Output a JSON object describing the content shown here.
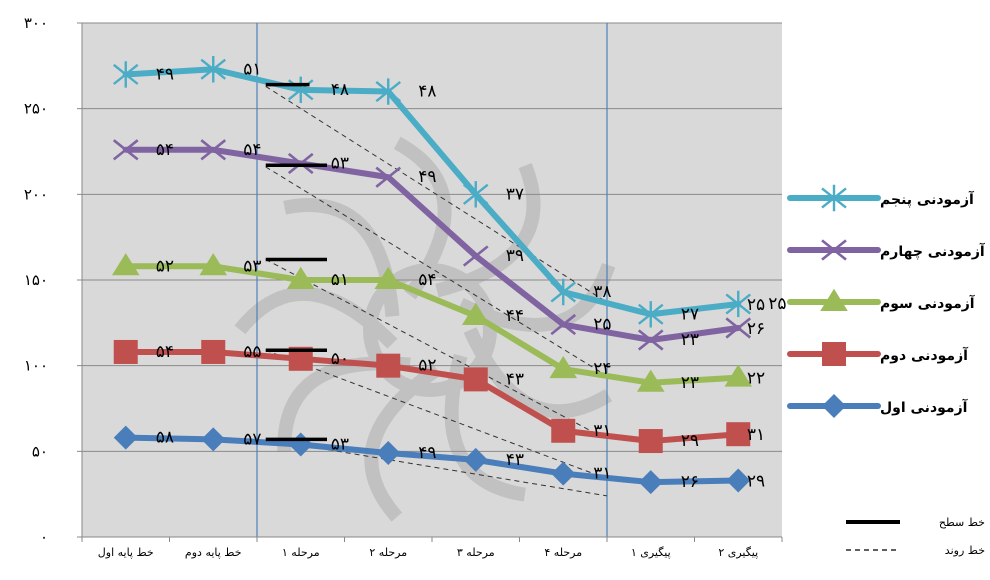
{
  "chart_data": {
    "type": "line",
    "categories": [
      "خط پایه اول",
      "خط پایه دوم",
      "مرحله ۱",
      "مرحله ۲",
      "مرحله ۳",
      "مرحله ۴",
      "پیگیری ۱",
      "پیگیری ۲"
    ],
    "ylim": [
      0,
      300
    ],
    "yticks": [
      {
        "value": 0,
        "label": "۰"
      },
      {
        "value": 50,
        "label": "۵۰"
      },
      {
        "value": 100,
        "label": "۱۰۰"
      },
      {
        "value": 150,
        "label": "۱۵۰"
      },
      {
        "value": 200,
        "label": "۲۰۰"
      },
      {
        "value": 250,
        "label": "۲۵۰"
      },
      {
        "value": 300,
        "label": "۳۰۰"
      }
    ],
    "grid": true,
    "phase_lines_after_categories": [
      1,
      5
    ],
    "series": [
      {
        "name": "آزمودنی اول",
        "color": "#4a7ebb",
        "marker": "diamond",
        "values": [
          58,
          57,
          54,
          49,
          45,
          37,
          32,
          33
        ],
        "labels": [
          "۵۸",
          "۵۷",
          "۵۳",
          "۴۹",
          "۴۳",
          "۳۱",
          "۲۶",
          ""
        ],
        "end_label": "۲۹"
      },
      {
        "name": "آزمودنی دوم",
        "color": "#c0504d",
        "marker": "square",
        "values": [
          108,
          108,
          104,
          100,
          92,
          62,
          56,
          60
        ],
        "labels": [
          "۵۴",
          "۵۵",
          "۵۰",
          "۵۲",
          "۴۳",
          "۳۱",
          "۲۹",
          ""
        ],
        "end_label": "۳۱"
      },
      {
        "name": "آزمودنی سوم",
        "color": "#9bbb59",
        "marker": "triangle",
        "values": [
          158,
          158,
          150,
          150,
          129,
          98,
          90,
          93
        ],
        "labels": [
          "۵۲",
          "۵۳",
          "۵۱",
          "۵۴",
          "۴۴",
          "۲۴",
          "۲۳",
          ""
        ],
        "end_label": "۲۲"
      },
      {
        "name": "آزمودنی چهارم",
        "color": "#8064a2",
        "marker": "x",
        "values": [
          226,
          226,
          218,
          210,
          164,
          124,
          115,
          122
        ],
        "labels": [
          "۵۴",
          "۵۴",
          "۵۳",
          "۴۹",
          "۳۹",
          "۲۵",
          "۲۳",
          ""
        ],
        "end_label": "۲۶"
      },
      {
        "name": "آزمودنی پنجم",
        "color": "#4bacc6",
        "marker": "star",
        "values": [
          270,
          273,
          261,
          260,
          200,
          143,
          130,
          136
        ],
        "labels": [
          "۴۹",
          "۵۱",
          "۴۸",
          "۴۸",
          "۳۷",
          "۳۸",
          "۲۷",
          "۲۵"
        ],
        "end_label": "۲۵"
      }
    ],
    "level_lines": [
      {
        "x": [
          1.6,
          2.1
        ],
        "y": 264
      },
      {
        "x": [
          1.6,
          2.3
        ],
        "y": 217
      },
      {
        "x": [
          1.6,
          2.3
        ],
        "y": 162
      },
      {
        "x": [
          1.6,
          2.3
        ],
        "y": 109
      },
      {
        "x": [
          1.6,
          2.3
        ],
        "y": 57
      }
    ],
    "trend_lines": [
      {
        "x": [
          1.6,
          5.5
        ],
        "y": [
          263,
          137
        ]
      },
      {
        "x": [
          1.6,
          5.5
        ],
        "y": [
          216,
          94
        ]
      },
      {
        "x": [
          1.6,
          5.5
        ],
        "y": [
          162,
          57
        ]
      },
      {
        "x": [
          1.6,
          5.5
        ],
        "y": [
          109,
          34
        ]
      },
      {
        "x": [
          1.6,
          5.5
        ],
        "y": [
          57,
          24
        ]
      }
    ],
    "legend_position": "right",
    "key": {
      "level_label": "خط سطح",
      "trend_label": "خط روند"
    }
  }
}
